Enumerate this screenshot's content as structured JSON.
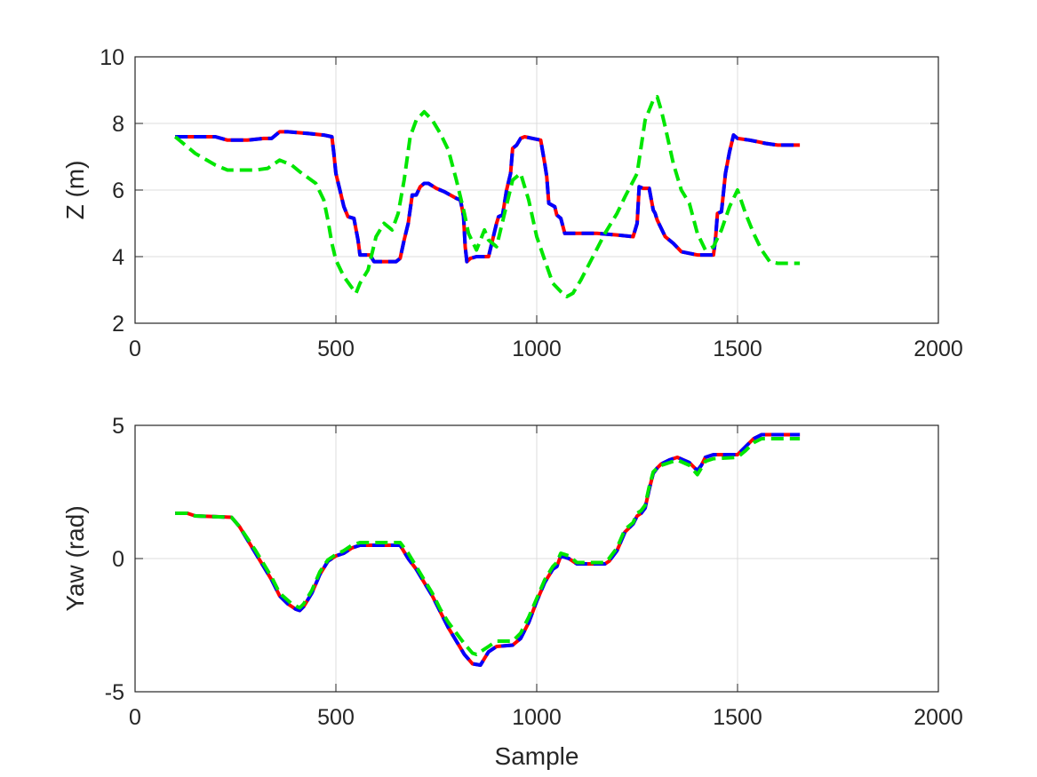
{
  "chart_data": [
    {
      "type": "line",
      "title": "",
      "xlabel": "",
      "ylabel": "Z (m)",
      "xlim": [
        0,
        2000
      ],
      "ylim": [
        2,
        10
      ],
      "xticks": [
        0,
        500,
        1000,
        1500,
        2000
      ],
      "yticks": [
        2,
        4,
        6,
        8,
        10
      ],
      "xtick_labels": [
        "0",
        "500",
        "1000",
        "1500",
        "2000"
      ],
      "ytick_labels": [
        "2",
        "4",
        "6",
        "8",
        "10"
      ],
      "grid": true,
      "series": [
        {
          "color": "#ff0000",
          "style": "solid",
          "x": [
            100,
            150,
            200,
            230,
            280,
            320,
            340,
            360,
            380,
            430,
            470,
            490,
            495,
            500,
            510,
            520,
            530,
            545,
            555,
            560,
            575,
            585,
            595,
            620,
            650,
            660,
            670,
            680,
            690,
            700,
            710,
            720,
            730,
            750,
            770,
            800,
            810,
            815,
            818,
            822,
            826,
            835,
            850,
            880,
            890,
            900,
            905,
            915,
            925,
            935,
            940,
            950,
            960,
            970,
            990,
            1010,
            1020,
            1025,
            1030,
            1045,
            1050,
            1060,
            1070,
            1150,
            1200,
            1240,
            1250,
            1255,
            1265,
            1280,
            1290,
            1295,
            1300,
            1320,
            1340,
            1360,
            1380,
            1400,
            1440,
            1445,
            1450,
            1460,
            1470,
            1480,
            1490,
            1500,
            1530,
            1550,
            1570,
            1600,
            1655
          ],
          "y": [
            7.6,
            7.6,
            7.6,
            7.5,
            7.5,
            7.55,
            7.55,
            7.75,
            7.75,
            7.7,
            7.65,
            7.6,
            7.1,
            6.5,
            6.0,
            5.5,
            5.2,
            5.15,
            4.5,
            4.05,
            4.05,
            4.05,
            3.85,
            3.85,
            3.85,
            3.95,
            4.5,
            5.0,
            5.85,
            5.85,
            6.1,
            6.2,
            6.2,
            6.05,
            5.95,
            5.75,
            5.7,
            5.4,
            5.2,
            4.3,
            3.85,
            3.95,
            4.0,
            4.0,
            4.5,
            5.0,
            5.2,
            5.25,
            6.0,
            6.5,
            7.25,
            7.35,
            7.55,
            7.6,
            7.55,
            7.5,
            6.8,
            6.4,
            5.6,
            5.5,
            5.25,
            5.15,
            4.7,
            4.7,
            4.65,
            4.6,
            5.0,
            6.1,
            6.05,
            6.05,
            5.4,
            5.3,
            5.1,
            4.6,
            4.4,
            4.15,
            4.1,
            4.05,
            4.05,
            4.5,
            5.3,
            5.35,
            6.5,
            7.15,
            7.65,
            7.55,
            7.5,
            7.45,
            7.4,
            7.35,
            7.35
          ]
        },
        {
          "color": "#0000ff",
          "style": "dashed",
          "x": [
            100,
            150,
            200,
            230,
            280,
            320,
            340,
            360,
            380,
            430,
            470,
            490,
            495,
            500,
            510,
            520,
            530,
            545,
            555,
            560,
            575,
            585,
            595,
            620,
            650,
            660,
            670,
            680,
            690,
            700,
            710,
            720,
            730,
            750,
            770,
            800,
            810,
            815,
            818,
            822,
            826,
            835,
            850,
            880,
            890,
            900,
            905,
            915,
            925,
            935,
            940,
            950,
            960,
            970,
            990,
            1010,
            1020,
            1025,
            1030,
            1045,
            1050,
            1060,
            1070,
            1150,
            1200,
            1240,
            1250,
            1255,
            1265,
            1280,
            1290,
            1295,
            1300,
            1320,
            1340,
            1360,
            1380,
            1400,
            1440,
            1445,
            1450,
            1460,
            1470,
            1480,
            1490,
            1500,
            1530,
            1550,
            1570,
            1600,
            1655
          ],
          "y": [
            7.6,
            7.6,
            7.6,
            7.5,
            7.5,
            7.55,
            7.55,
            7.75,
            7.75,
            7.7,
            7.65,
            7.6,
            7.1,
            6.5,
            6.0,
            5.5,
            5.2,
            5.15,
            4.5,
            4.05,
            4.05,
            4.05,
            3.85,
            3.85,
            3.85,
            3.95,
            4.5,
            5.0,
            5.85,
            5.85,
            6.1,
            6.2,
            6.2,
            6.05,
            5.95,
            5.75,
            5.7,
            5.4,
            5.2,
            4.3,
            3.85,
            3.95,
            4.0,
            4.0,
            4.5,
            5.0,
            5.2,
            5.25,
            6.0,
            6.5,
            7.25,
            7.35,
            7.55,
            7.6,
            7.55,
            7.5,
            6.8,
            6.4,
            5.6,
            5.5,
            5.25,
            5.15,
            4.7,
            4.7,
            4.65,
            4.6,
            5.0,
            6.1,
            6.05,
            6.05,
            5.4,
            5.3,
            5.1,
            4.6,
            4.4,
            4.15,
            4.1,
            4.05,
            4.05,
            4.5,
            5.3,
            5.35,
            6.5,
            7.15,
            7.65,
            7.55,
            7.5,
            7.45,
            7.4,
            7.35,
            7.35
          ]
        },
        {
          "color": "#00e600",
          "style": "dashed",
          "x": [
            100,
            150,
            200,
            230,
            300,
            330,
            360,
            390,
            410,
            450,
            470,
            480,
            490,
            500,
            520,
            550,
            560,
            580,
            600,
            620,
            640,
            655,
            670,
            685,
            700,
            720,
            740,
            760,
            780,
            800,
            820,
            830,
            850,
            870,
            880,
            900,
            920,
            940,
            960,
            980,
            1000,
            1020,
            1040,
            1060,
            1075,
            1090,
            1110,
            1140,
            1170,
            1200,
            1220,
            1250,
            1270,
            1290,
            1300,
            1310,
            1320,
            1340,
            1360,
            1380,
            1400,
            1420,
            1440,
            1460,
            1480,
            1500,
            1520,
            1540,
            1560,
            1580,
            1600,
            1640,
            1655
          ],
          "y": [
            7.6,
            7.1,
            6.75,
            6.6,
            6.6,
            6.65,
            6.9,
            6.75,
            6.55,
            6.2,
            5.7,
            5.1,
            4.4,
            3.9,
            3.4,
            2.9,
            3.2,
            3.6,
            4.6,
            5.0,
            4.8,
            5.3,
            6.3,
            7.6,
            8.1,
            8.35,
            8.1,
            7.7,
            7.2,
            6.3,
            5.3,
            4.7,
            4.2,
            4.8,
            4.5,
            4.3,
            5.3,
            6.3,
            6.5,
            5.7,
            4.6,
            3.9,
            3.2,
            2.95,
            2.8,
            2.9,
            3.3,
            4.0,
            4.7,
            5.3,
            5.8,
            6.5,
            8.1,
            8.7,
            8.8,
            8.4,
            7.9,
            6.8,
            6.0,
            5.6,
            4.7,
            4.2,
            4.3,
            4.8,
            5.5,
            6.0,
            5.3,
            4.7,
            4.2,
            3.85,
            3.8,
            3.8,
            3.8
          ]
        }
      ]
    },
    {
      "type": "line",
      "title": "",
      "xlabel": "Sample",
      "ylabel": "Yaw (rad)",
      "xlim": [
        0,
        2000
      ],
      "ylim": [
        -5,
        5
      ],
      "xticks": [
        0,
        500,
        1000,
        1500,
        2000
      ],
      "yticks": [
        -5,
        0,
        5
      ],
      "xtick_labels": [
        "0",
        "500",
        "1000",
        "1500",
        "2000"
      ],
      "ytick_labels": [
        "-5",
        "0",
        "5"
      ],
      "grid": true,
      "series": [
        {
          "color": "#ff0000",
          "style": "solid",
          "x": [
            100,
            130,
            150,
            240,
            260,
            300,
            340,
            360,
            380,
            400,
            410,
            420,
            440,
            460,
            480,
            500,
            520,
            540,
            560,
            660,
            680,
            700,
            720,
            740,
            760,
            780,
            800,
            820,
            840,
            860,
            870,
            880,
            900,
            940,
            960,
            980,
            1000,
            1020,
            1040,
            1050,
            1060,
            1080,
            1100,
            1170,
            1180,
            1200,
            1220,
            1240,
            1250,
            1260,
            1270,
            1280,
            1290,
            1300,
            1310,
            1330,
            1350,
            1380,
            1400,
            1410,
            1420,
            1440,
            1500,
            1520,
            1540,
            1560,
            1655
          ],
          "y": [
            1.7,
            1.7,
            1.6,
            1.55,
            1.2,
            0.2,
            -0.8,
            -1.4,
            -1.7,
            -1.9,
            -1.95,
            -1.8,
            -1.3,
            -0.6,
            -0.1,
            0.1,
            0.2,
            0.4,
            0.5,
            0.5,
            0.0,
            -0.4,
            -0.9,
            -1.4,
            -2.0,
            -2.6,
            -3.1,
            -3.6,
            -3.95,
            -4.0,
            -3.75,
            -3.5,
            -3.3,
            -3.25,
            -3.0,
            -2.4,
            -1.6,
            -0.9,
            -0.4,
            -0.3,
            0.1,
            0.0,
            -0.2,
            -0.2,
            -0.1,
            0.3,
            1.0,
            1.3,
            1.6,
            1.7,
            1.9,
            2.6,
            3.2,
            3.4,
            3.55,
            3.7,
            3.8,
            3.6,
            3.3,
            3.5,
            3.8,
            3.9,
            3.9,
            4.2,
            4.5,
            4.65,
            4.65
          ]
        },
        {
          "color": "#0000ff",
          "style": "dashed",
          "x": [
            100,
            130,
            150,
            240,
            260,
            300,
            340,
            360,
            380,
            400,
            410,
            420,
            440,
            460,
            480,
            500,
            520,
            540,
            560,
            660,
            680,
            700,
            720,
            740,
            760,
            780,
            800,
            820,
            840,
            860,
            870,
            880,
            900,
            940,
            960,
            980,
            1000,
            1020,
            1040,
            1050,
            1060,
            1080,
            1100,
            1170,
            1180,
            1200,
            1220,
            1240,
            1250,
            1260,
            1270,
            1280,
            1290,
            1300,
            1310,
            1330,
            1350,
            1380,
            1400,
            1410,
            1420,
            1440,
            1500,
            1520,
            1540,
            1560,
            1655
          ],
          "y": [
            1.7,
            1.7,
            1.6,
            1.55,
            1.2,
            0.2,
            -0.8,
            -1.4,
            -1.7,
            -1.9,
            -1.95,
            -1.8,
            -1.3,
            -0.6,
            -0.1,
            0.1,
            0.2,
            0.4,
            0.5,
            0.5,
            0.0,
            -0.4,
            -0.9,
            -1.4,
            -2.0,
            -2.6,
            -3.1,
            -3.6,
            -3.95,
            -4.0,
            -3.75,
            -3.5,
            -3.3,
            -3.25,
            -3.0,
            -2.4,
            -1.6,
            -0.9,
            -0.4,
            -0.3,
            0.1,
            0.0,
            -0.2,
            -0.2,
            -0.1,
            0.3,
            1.0,
            1.3,
            1.6,
            1.7,
            1.9,
            2.6,
            3.2,
            3.4,
            3.55,
            3.7,
            3.8,
            3.6,
            3.3,
            3.5,
            3.8,
            3.9,
            3.9,
            4.2,
            4.5,
            4.65,
            4.65
          ]
        },
        {
          "color": "#00e600",
          "style": "dashed",
          "x": [
            100,
            130,
            150,
            240,
            260,
            300,
            340,
            360,
            390,
            410,
            420,
            440,
            460,
            480,
            500,
            520,
            540,
            560,
            660,
            680,
            700,
            720,
            740,
            760,
            780,
            800,
            820,
            840,
            850,
            860,
            880,
            900,
            940,
            960,
            980,
            1000,
            1020,
            1040,
            1050,
            1060,
            1080,
            1100,
            1170,
            1180,
            1200,
            1220,
            1240,
            1250,
            1260,
            1270,
            1280,
            1290,
            1300,
            1310,
            1330,
            1350,
            1380,
            1400,
            1410,
            1420,
            1440,
            1500,
            1520,
            1540,
            1560,
            1655
          ],
          "y": [
            1.7,
            1.7,
            1.6,
            1.55,
            1.2,
            0.3,
            -0.7,
            -1.3,
            -1.7,
            -1.85,
            -1.7,
            -1.2,
            -0.5,
            -0.05,
            0.15,
            0.3,
            0.5,
            0.6,
            0.6,
            0.2,
            -0.3,
            -0.8,
            -1.3,
            -1.9,
            -2.4,
            -2.8,
            -3.2,
            -3.55,
            -3.6,
            -3.5,
            -3.3,
            -3.1,
            -3.1,
            -2.8,
            -2.2,
            -1.5,
            -0.8,
            -0.3,
            -0.15,
            0.2,
            0.1,
            -0.15,
            -0.15,
            0.0,
            0.4,
            1.1,
            1.35,
            1.7,
            1.8,
            2.0,
            2.7,
            3.25,
            3.4,
            3.5,
            3.6,
            3.7,
            3.5,
            3.15,
            3.4,
            3.65,
            3.75,
            3.8,
            4.05,
            4.35,
            4.5,
            4.5
          ]
        }
      ]
    }
  ]
}
